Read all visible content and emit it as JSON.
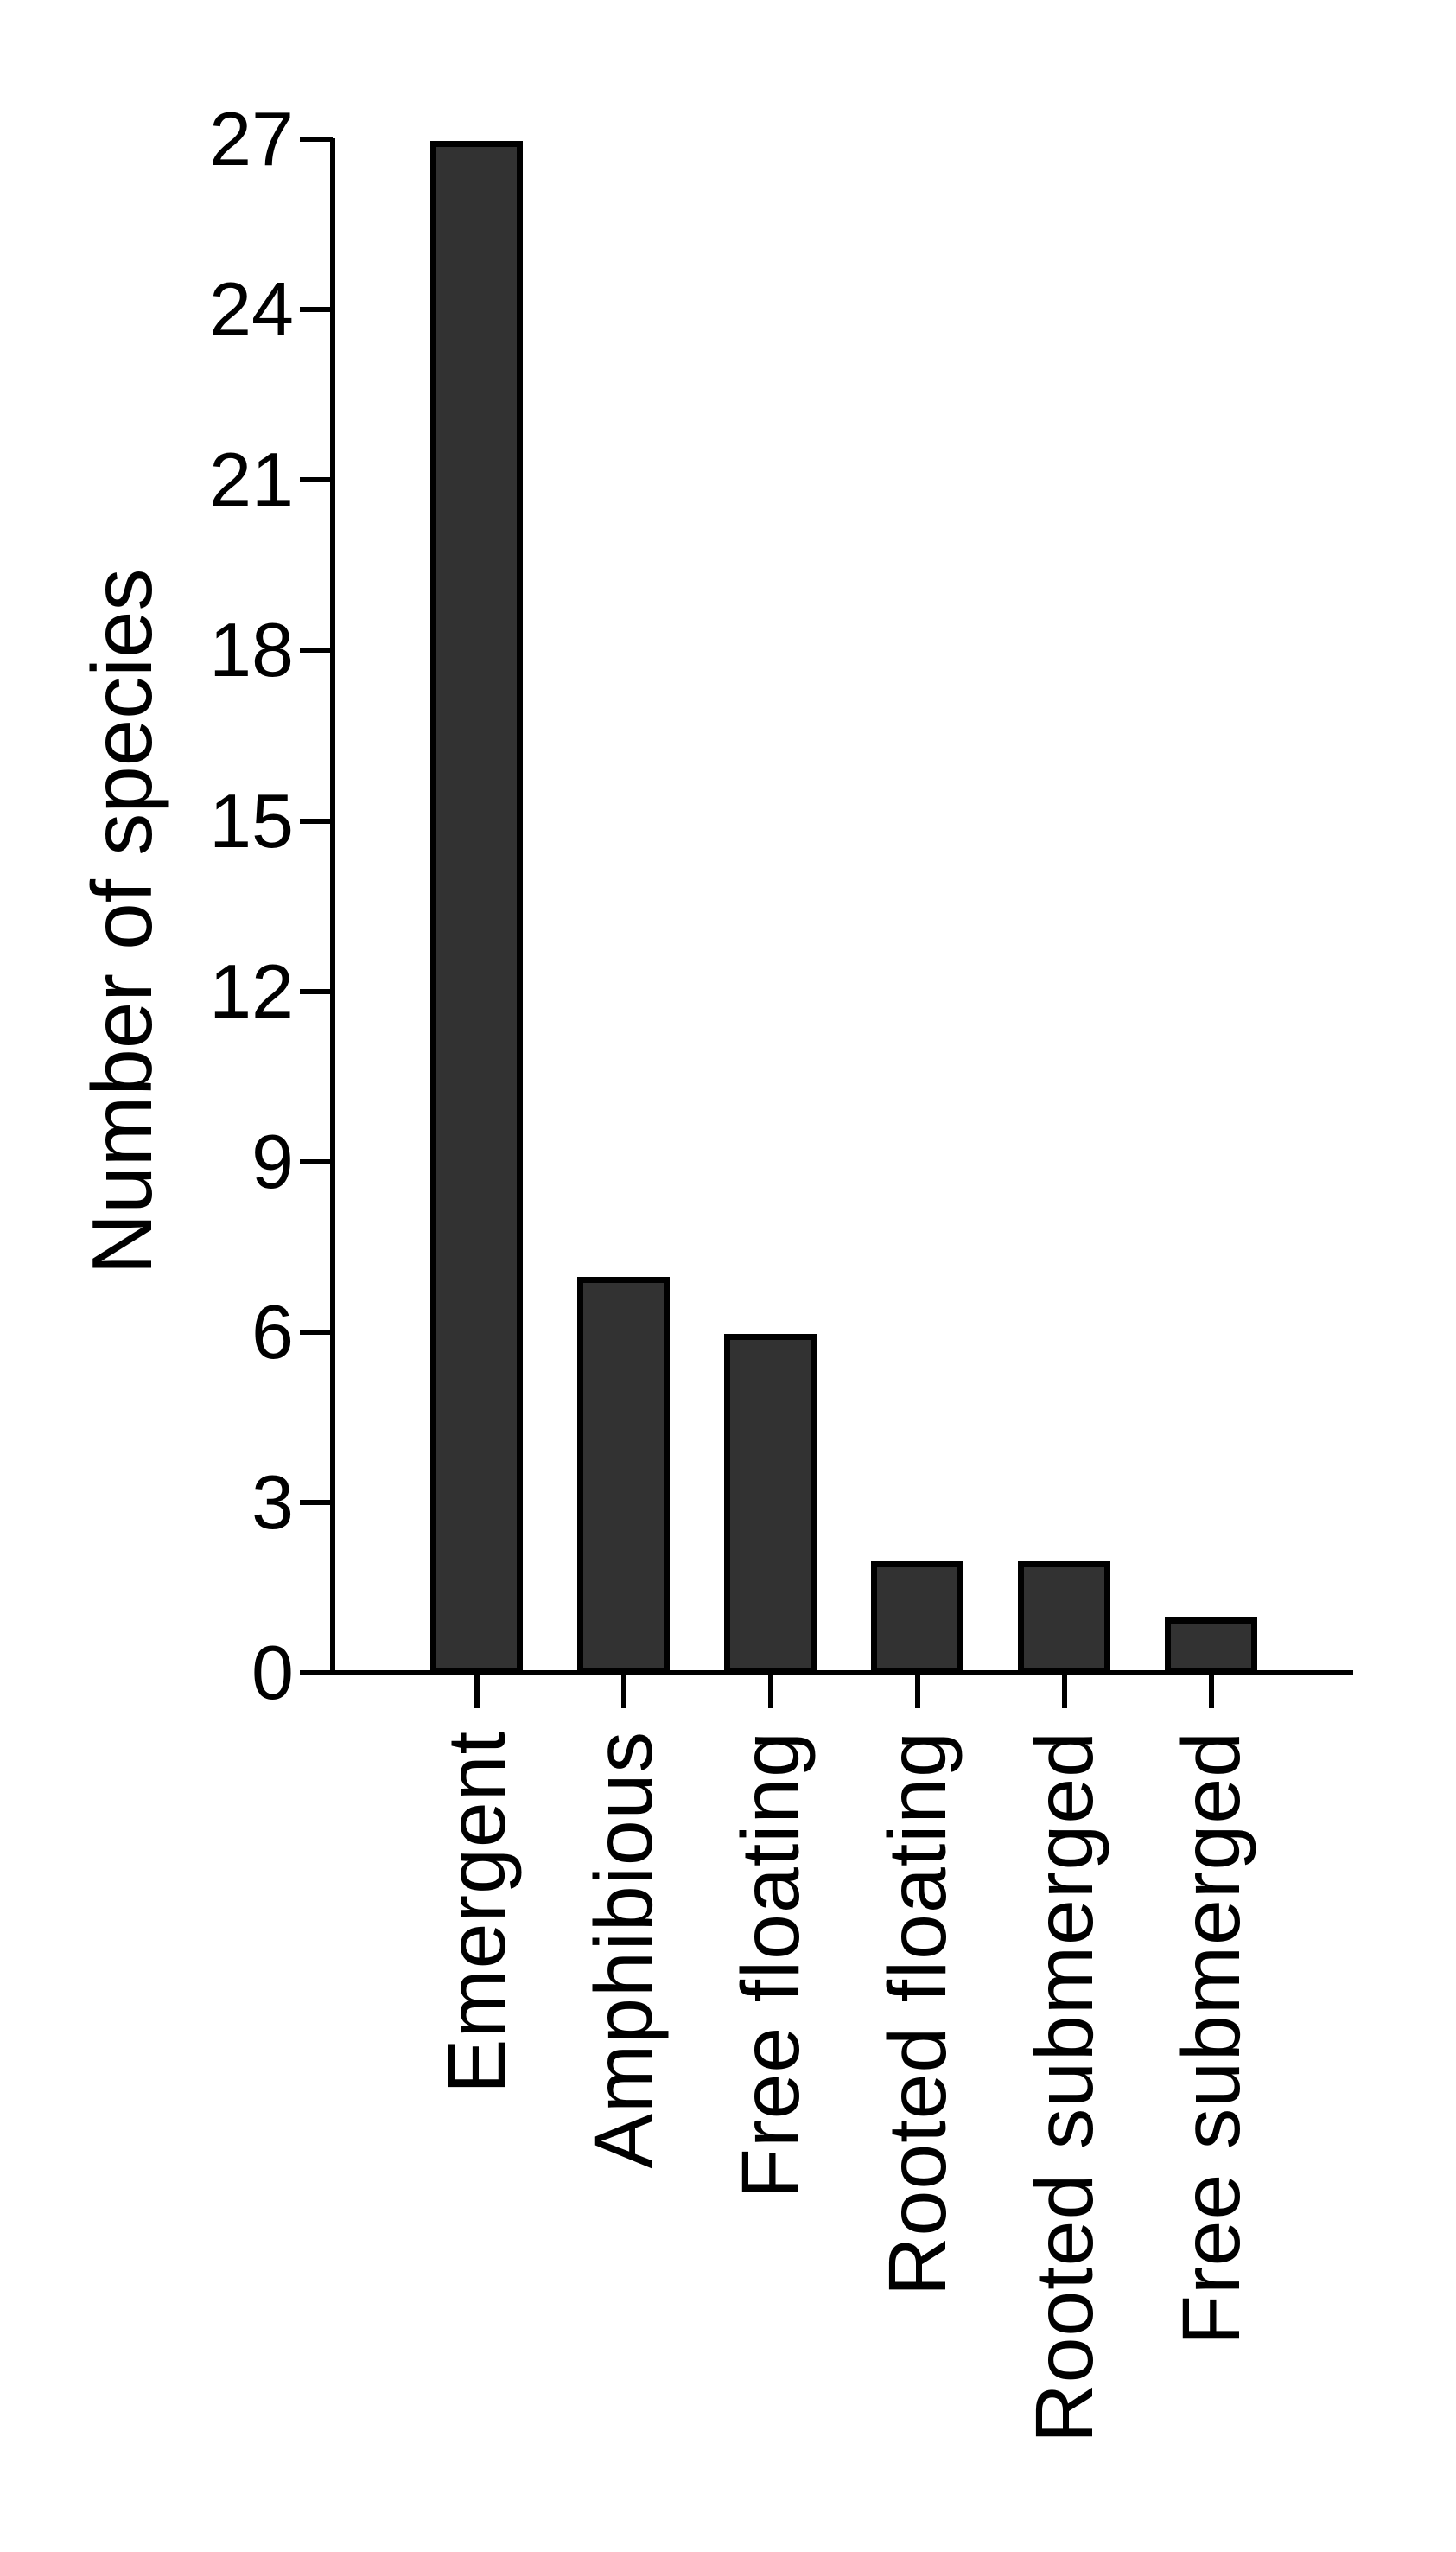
{
  "chart_data": {
    "type": "bar",
    "categories": [
      "Emergent",
      "Amphibious",
      "Free floating",
      "Rooted floating",
      "Rooted submerged",
      "Free submerged"
    ],
    "values": [
      27,
      7,
      6,
      2,
      2,
      1
    ],
    "title": "",
    "xlabel": "",
    "ylabel": "Number of species",
    "ylim": [
      0,
      27
    ],
    "yticks": [
      0,
      3,
      6,
      9,
      12,
      15,
      18,
      21,
      24,
      27
    ],
    "grid": false,
    "legend": false,
    "bar_fill_color": "#323232",
    "bar_border_color": "#000000",
    "axis_color": "#000000",
    "text_color": "#000000",
    "background_color": "#ffffff"
  }
}
